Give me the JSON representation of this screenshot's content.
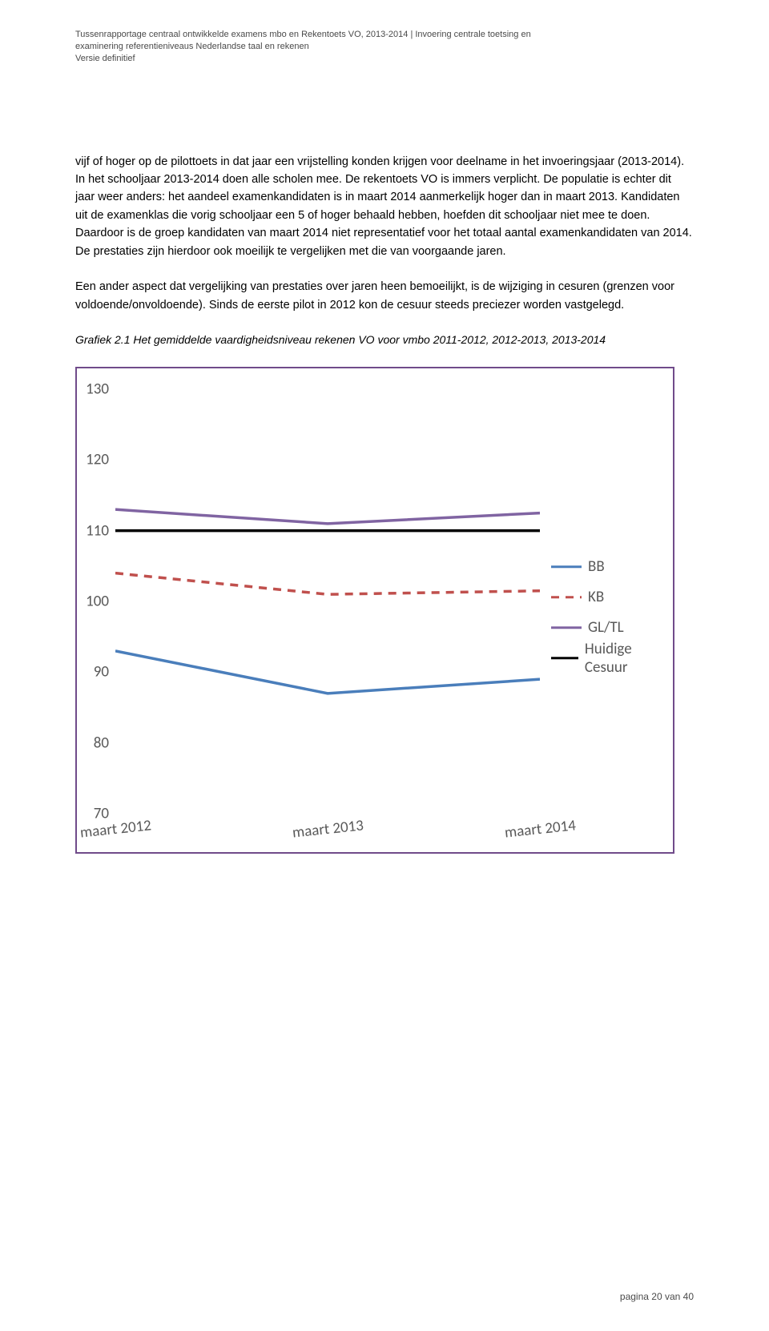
{
  "header": {
    "line1": "Tussenrapportage centraal ontwikkelde examens mbo en Rekentoets VO, 2013-2014 | Invoering centrale toetsing en",
    "line2": "examinering referentieniveaus Nederlandse taal en rekenen",
    "line3": "Versie definitief"
  },
  "paragraphs": {
    "p1": "vijf of hoger op de pilottoets in dat jaar een vrijstelling konden krijgen voor deelname in het invoeringsjaar (2013-2014). In het schooljaar 2013-2014 doen alle scholen mee. De rekentoets VO is immers verplicht. De populatie is echter dit jaar weer anders: het aandeel examenkandidaten is in maart 2014 aanmerkelijk hoger dan in maart 2013. Kandidaten uit de examenklas die vorig schooljaar een 5 of hoger behaald hebben, hoefden dit schooljaar niet mee te doen. Daardoor is de groep kandidaten van maart 2014 niet representatief voor het totaal aantal examenkandidaten van 2014. De prestaties zijn hierdoor ook moeilijk te vergelijken met die van voorgaande jaren.",
    "p2": "Een ander aspect dat vergelijking van prestaties over jaren heen bemoeilijkt, is de wijziging in cesuren (grenzen voor voldoende/onvoldoende). Sinds de eerste pilot in 2012 kon de cesuur steeds preciezer worden vastgelegd.",
    "caption": "Grafiek 2.1 Het gemiddelde vaardigheidsniveau rekenen VO voor vmbo 2011-2012, 2012-2013, 2013-2014"
  },
  "chart": {
    "type": "line",
    "ylim": [
      70,
      130
    ],
    "ytick_step": 10,
    "yticks": [
      70,
      80,
      90,
      100,
      110,
      120,
      130
    ],
    "x_categories": [
      "maart 2012",
      "maart 2013",
      "maart 2014"
    ],
    "series": [
      {
        "name": "BB",
        "color": "#4a7ebb",
        "width": 3.5,
        "dash": "",
        "values": [
          93,
          87,
          89
        ]
      },
      {
        "name": "KB",
        "color": "#c0504d",
        "width": 3.5,
        "dash": "10,8",
        "values": [
          104,
          101,
          101.5
        ]
      },
      {
        "name": "GL/TL",
        "color": "#8064a2",
        "width": 3.5,
        "dash": "",
        "values": [
          113,
          111,
          112.5
        ]
      },
      {
        "name": "Huidige Cesuur",
        "color": "#000000",
        "width": 3.5,
        "dash": "",
        "values": [
          110,
          110,
          110
        ]
      }
    ],
    "background_color": "#ffffff",
    "border_color": "#704b8a",
    "axis_text_color": "#595959",
    "axis_font_size": 19
  },
  "footer": {
    "page_label": "pagina 20 van 40"
  }
}
